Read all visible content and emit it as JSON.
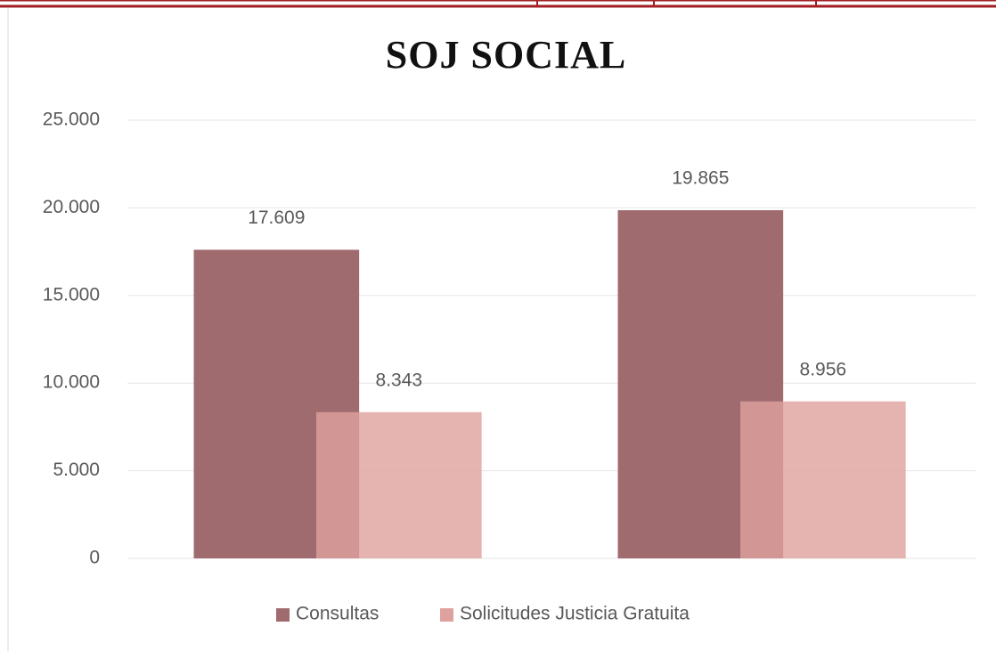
{
  "chart_data": {
    "type": "bar",
    "title": "SOJ SOCIAL",
    "categories": [
      null,
      null
    ],
    "series": [
      {
        "name": "Consultas",
        "color": "#a06b6f",
        "values": [
          17609,
          19865
        ],
        "value_labels": [
          "17.609",
          "19.865"
        ]
      },
      {
        "name": "Solicitudes Justicia Gratuita",
        "color": "#dfa19e",
        "values": [
          8343,
          8956
        ],
        "value_labels": [
          "8.343",
          "8.956"
        ]
      }
    ],
    "ylim": [
      0,
      25000
    ],
    "yticks": [
      0,
      {
        "value": 5000,
        "label": "5.000"
      },
      {
        "value": 10000,
        "label": "10.000"
      },
      {
        "value": 15000,
        "label": "15.000"
      },
      {
        "value": 20000,
        "label": "20.000"
      },
      {
        "value": 25000,
        "label": "25.000"
      }
    ],
    "grid": true,
    "legend": "bottom"
  }
}
